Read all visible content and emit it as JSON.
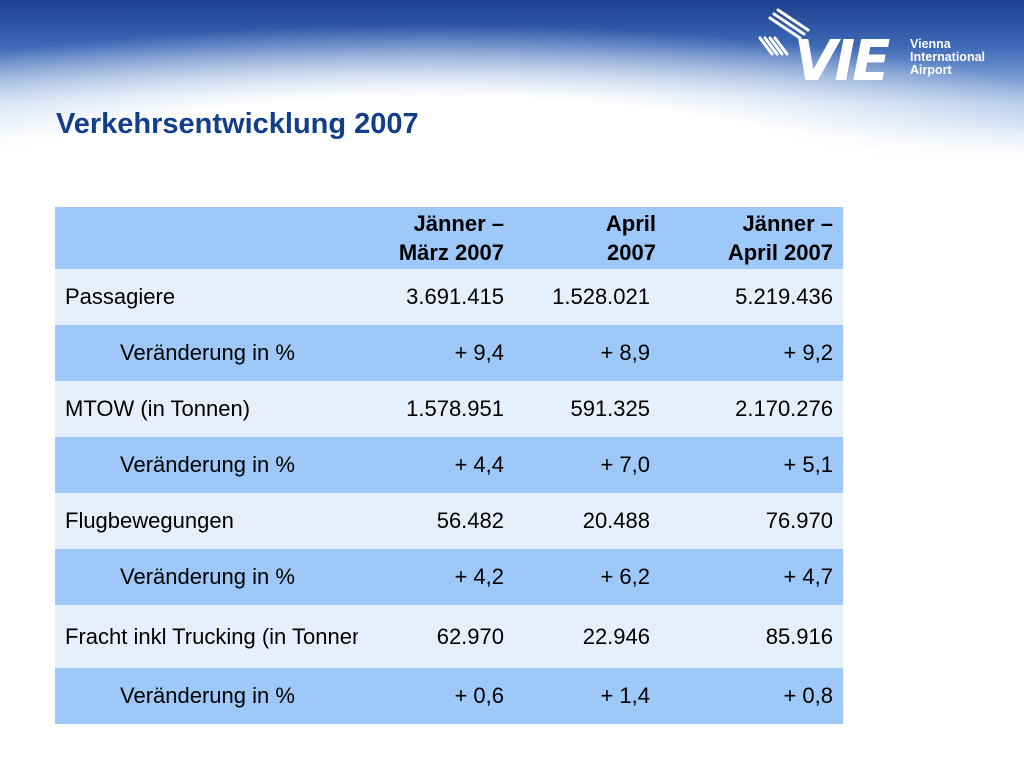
{
  "title": "Verkehrsentwicklung 2007",
  "logo": {
    "mark": "VIE",
    "lines": [
      "Vienna",
      "International",
      "Airport"
    ]
  },
  "colors": {
    "title": "#123f8c",
    "header_row": "#9ec8f7",
    "main_row": "#e6f0fc",
    "change_row": "#9ec8f7"
  },
  "table": {
    "headers": [
      "",
      "Jänner – März 2007",
      "April 2007",
      "Jänner – April 2007"
    ],
    "rows": [
      {
        "label": "Passagiere",
        "values": [
          "3.691.415",
          "1.528.021",
          "5.219.436"
        ]
      },
      {
        "label": "Veränderung in %",
        "values": [
          "+ 9,4",
          "+ 8,9",
          "+ 9,2"
        ]
      },
      {
        "label": "MTOW (in Tonnen)",
        "values": [
          "1.578.951",
          "591.325",
          "2.170.276"
        ]
      },
      {
        "label": "Veränderung in %",
        "values": [
          "+ 4,4",
          "+ 7,0",
          "+ 5,1"
        ]
      },
      {
        "label": "Flugbewegungen",
        "values": [
          "56.482",
          "20.488",
          "76.970"
        ]
      },
      {
        "label": "Veränderung in %",
        "values": [
          "+ 4,2",
          "+ 6,2",
          "+ 4,7"
        ]
      },
      {
        "label": "Fracht inkl Trucking (in Tonnen)",
        "values": [
          "62.970",
          "22.946",
          "85.916"
        ]
      },
      {
        "label": "Veränderung in %",
        "values": [
          "+ 0,6",
          "+ 1,4",
          "+ 0,8"
        ]
      }
    ]
  }
}
